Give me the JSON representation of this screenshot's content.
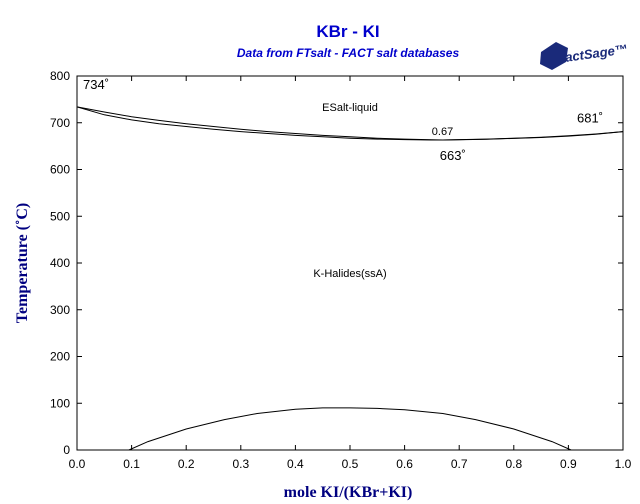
{
  "chart_data": {
    "type": "line",
    "title": "KBr - KI",
    "subtitle": "Data from FTsalt - FACT salt databases",
    "logo_text": "FactSage™",
    "xlabel": "mole KI/(KBr+KI)",
    "ylabel": "Temperature (˚C)",
    "xlim": [
      0,
      1
    ],
    "ylim": [
      0,
      800
    ],
    "xticks": [
      0.0,
      0.1,
      0.2,
      0.3,
      0.4,
      0.5,
      0.6,
      0.7,
      0.8,
      0.9,
      1.0
    ],
    "xtick_labels": [
      "0.0",
      "0.1",
      "0.2",
      "0.3",
      "0.4",
      "0.5",
      "0.6",
      "0.7",
      "0.8",
      "0.9",
      "1.0"
    ],
    "yticks": [
      0,
      100,
      200,
      300,
      400,
      500,
      600,
      700,
      800
    ],
    "ytick_labels": [
      "0",
      "100",
      "200",
      "300",
      "400",
      "500",
      "600",
      "700",
      "800"
    ],
    "grid": false,
    "series": [
      {
        "x": [
          0.0,
          0.05,
          0.1,
          0.15,
          0.2,
          0.25,
          0.3,
          0.35,
          0.4,
          0.45,
          0.5,
          0.55,
          0.6,
          0.65,
          0.67,
          0.7,
          0.75,
          0.8,
          0.85,
          0.9,
          0.95,
          1.0
        ],
        "y": [
          734,
          723,
          713,
          705,
          698,
          692,
          686,
          681,
          677,
          673,
          670,
          667,
          665,
          663.5,
          663,
          664,
          665,
          667,
          669,
          672,
          676,
          681
        ]
      },
      {
        "x": [
          0.0,
          0.05,
          0.1,
          0.15,
          0.2,
          0.25,
          0.3,
          0.35,
          0.4,
          0.45,
          0.5,
          0.55,
          0.6,
          0.65,
          0.67,
          0.7,
          0.75,
          0.8,
          0.85,
          0.9,
          0.95,
          1.0
        ],
        "y": [
          734,
          717,
          706,
          698,
          692,
          686,
          681,
          677,
          673,
          670,
          667,
          665,
          664,
          663.2,
          663,
          663.5,
          664.5,
          666.5,
          668.5,
          671.5,
          675.5,
          681
        ]
      },
      {
        "x": [
          0.095,
          0.13,
          0.2,
          0.27,
          0.33,
          0.4,
          0.45,
          0.5,
          0.55,
          0.6,
          0.67,
          0.73,
          0.8,
          0.87,
          0.905
        ],
        "y": [
          0,
          18,
          45,
          65,
          78,
          87,
          90,
          90,
          89,
          86,
          78,
          65,
          45,
          18,
          0
        ]
      }
    ],
    "annotations": [
      {
        "text": "734˚",
        "x": 0.0,
        "y": 734
      },
      {
        "text": "681˚",
        "x": 1.0,
        "y": 681
      },
      {
        "text": "663˚",
        "x": 0.67,
        "y": 663
      },
      {
        "text": "0.67",
        "x": 0.67,
        "y": 663
      },
      {
        "text": "ESalt-liquid",
        "x": 0.5,
        "y": 725
      },
      {
        "text": "K-Halides(ssA)",
        "x": 0.5,
        "y": 370
      }
    ],
    "colors": {
      "title": "#0000cc",
      "axis_label": "#000080",
      "line": "#000000",
      "logo": "#1a2a7a"
    }
  }
}
